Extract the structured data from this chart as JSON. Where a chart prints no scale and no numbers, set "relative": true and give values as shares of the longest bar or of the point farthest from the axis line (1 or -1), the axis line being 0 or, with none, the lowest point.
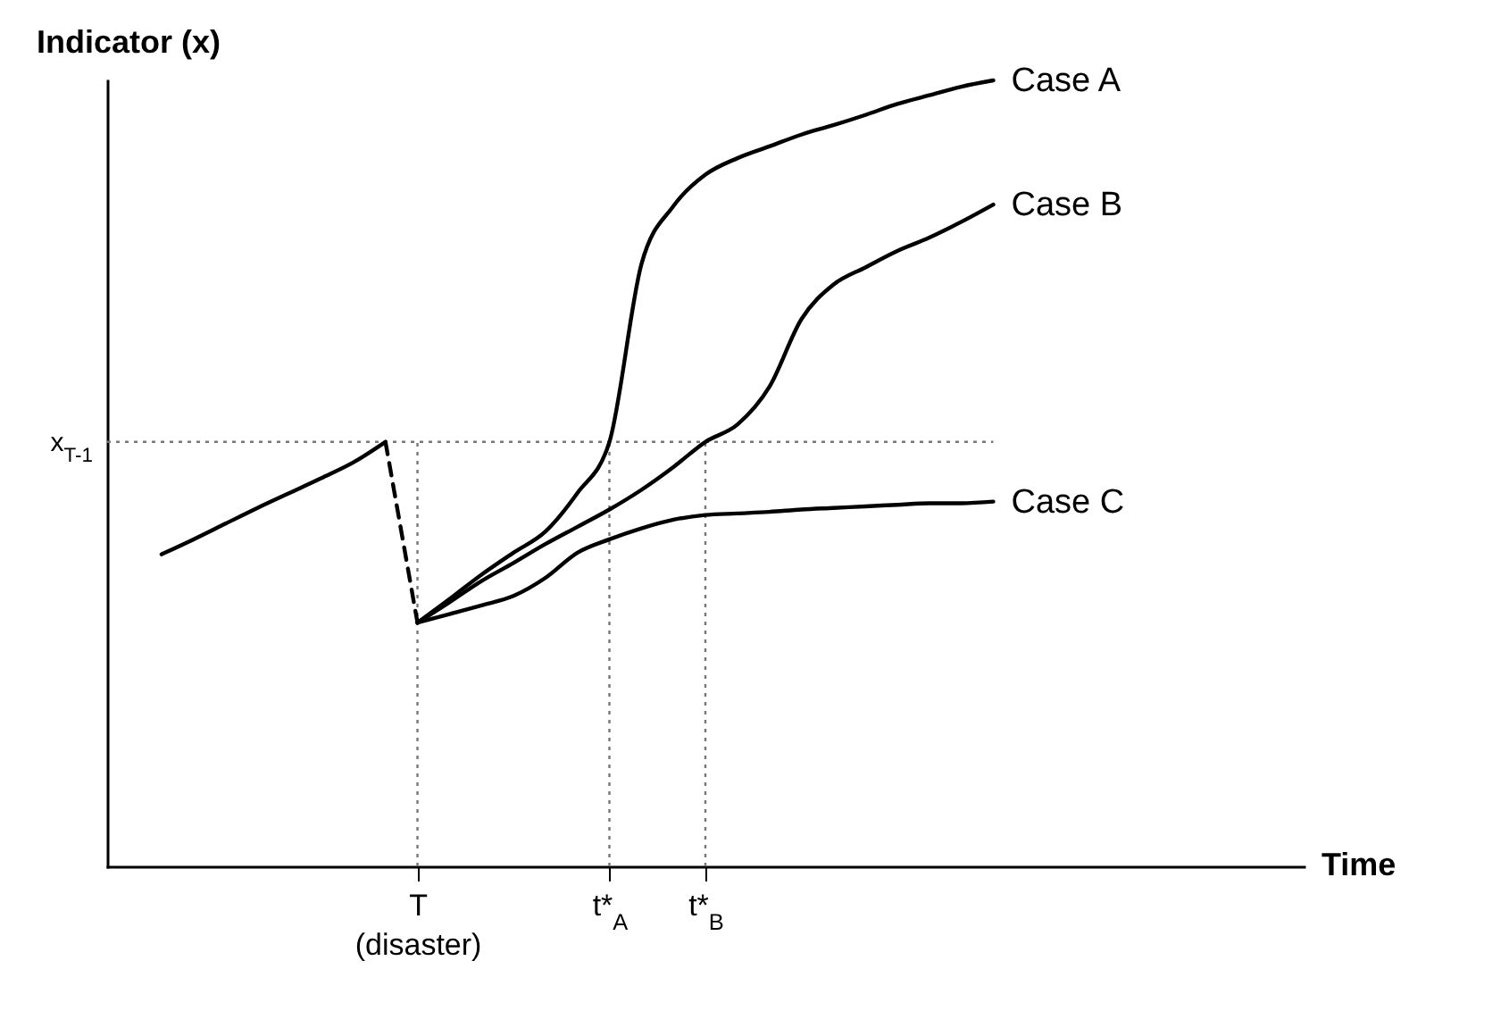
{
  "chart_data": {
    "type": "line",
    "relative": true,
    "annotations": [
      "Time"
    ],
    "ylabel": "Indicator (x)",
    "categories": [
      null,
      null,
      null,
      null,
      null,
      null,
      null,
      null,
      "T\n(disaster)",
      null,
      null,
      null,
      null,
      null,
      "t*$_{A}$",
      null,
      null,
      "t*$_{B}$",
      null,
      null,
      null,
      null,
      null,
      null,
      null,
      null,
      null
    ],
    "marker": "none",
    "series": [
      {
        "color": "#000000",
        "line_style": "solid",
        "values": [
          0.397,
          0.416,
          0.436,
          0.456,
          0.475,
          0.494,
          0.514,
          0.54,
          null,
          null,
          null,
          null,
          null,
          null,
          null,
          null,
          null,
          null,
          null,
          null,
          null,
          null,
          null,
          null,
          null,
          null,
          null
        ]
      },
      {
        "color": "#000000",
        "line_style": "dashed",
        "values": [
          null,
          null,
          null,
          null,
          null,
          null,
          null,
          0.54,
          0.31,
          null,
          null,
          null,
          null,
          null,
          null,
          null,
          null,
          null,
          null,
          null,
          null,
          null,
          null,
          null,
          null,
          null,
          null
        ]
      },
      {
        "name": "Case A",
        "color": "#000000",
        "line_style": "solid",
        "values": [
          null,
          null,
          null,
          null,
          null,
          null,
          null,
          null,
          0.31,
          0.34,
          0.371,
          0.399,
          0.426,
          0.475,
          0.54,
          0.766,
          0.84,
          0.88,
          0.901,
          0.916,
          0.931,
          0.943,
          0.956,
          0.97,
          0.981,
          0.992,
          1
        ]
      },
      {
        "name": "Case B",
        "color": "#000000",
        "line_style": "solid",
        "values": [
          null,
          null,
          null,
          null,
          null,
          null,
          null,
          null,
          0.31,
          0.336,
          0.363,
          0.386,
          0.41,
          0.432,
          0.454,
          0.479,
          0.508,
          0.54,
          0.562,
          0.61,
          0.696,
          0.74,
          0.762,
          0.783,
          0.8,
          0.82,
          0.842
        ]
      },
      {
        "name": "Case C",
        "color": "#000000",
        "line_style": "solid",
        "values": [
          null,
          null,
          null,
          null,
          null,
          null,
          null,
          null,
          0.31,
          0.321,
          0.332,
          0.344,
          0.367,
          0.399,
          0.416,
          0.43,
          0.441,
          0.447,
          0.449,
          0.451,
          0.454,
          0.456,
          0.458,
          0.46,
          0.462,
          0.462,
          0.464
        ]
      }
    ],
    "ref_lines": [
      {
        "axis": "y",
        "value": 0.54,
        "label": "x$_{T-1}$",
        "color": "#777777",
        "line_style": "dotted"
      },
      {
        "axis": "x",
        "value": "T\n(disaster)",
        "color": "#777777",
        "line_style": "dotted"
      },
      {
        "axis": "x",
        "value": "t*$_{A}$",
        "color": "#777777",
        "line_style": "dotted"
      },
      {
        "axis": "x",
        "value": "t*$_{B}$",
        "color": "#777777",
        "line_style": "dotted"
      }
    ]
  }
}
